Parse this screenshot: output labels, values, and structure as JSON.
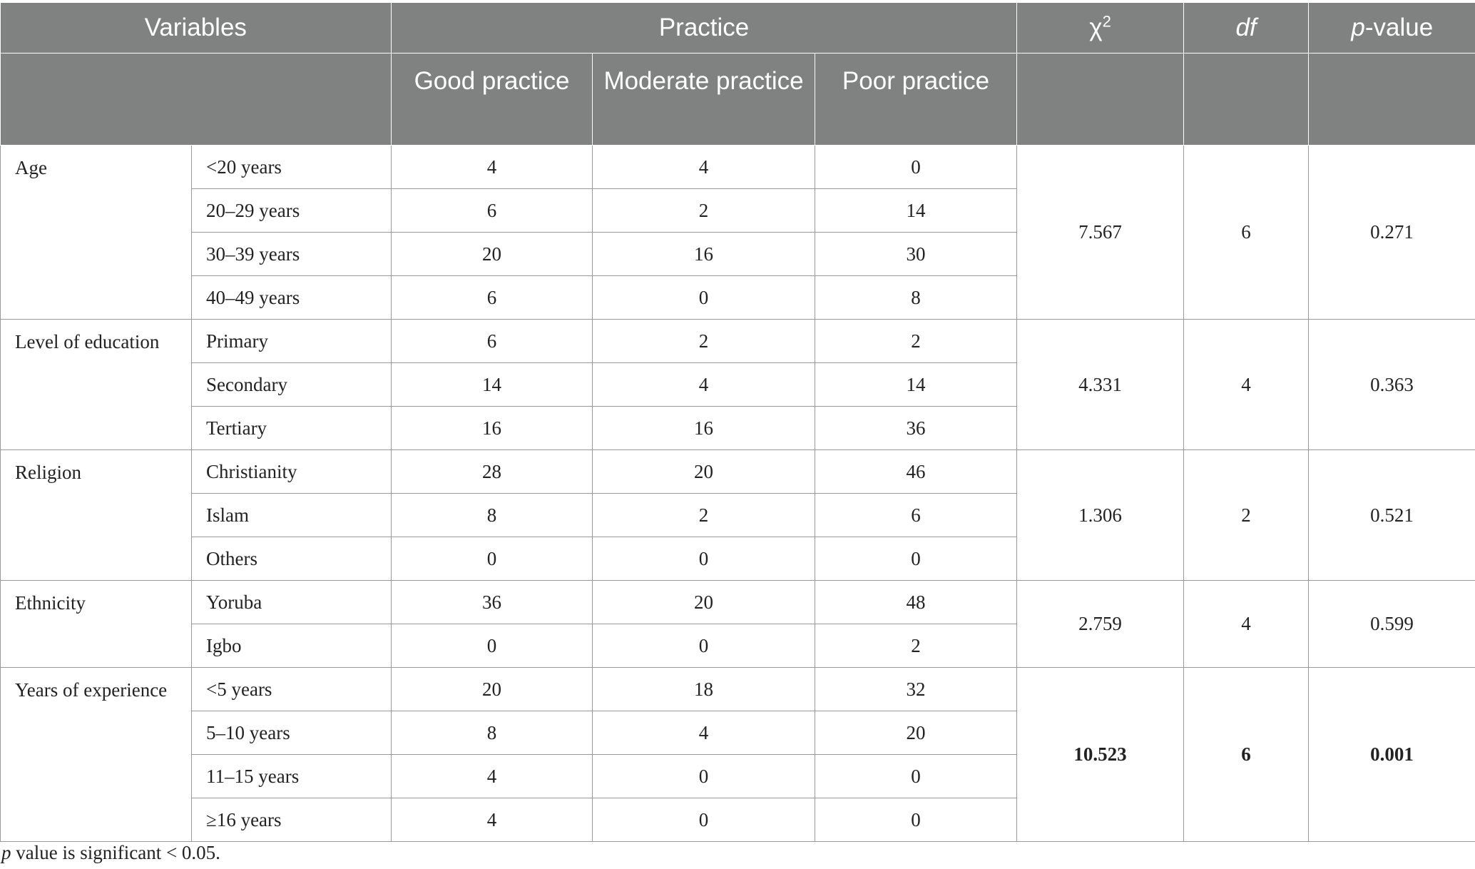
{
  "header": {
    "variables": "Variables",
    "practice": "Practice",
    "chi_symbol": "χ",
    "chi_sup": "2",
    "df": "df",
    "p_italic": "p",
    "p_rest": "-value",
    "sub_good": "Good practice",
    "sub_moderate": "Moderate practice",
    "sub_poor": "Poor practice"
  },
  "groups": [
    {
      "variable": "Age",
      "chi2": "7.567",
      "df": "6",
      "p": "0.271",
      "bold": false,
      "rows": [
        {
          "label": "<20 years",
          "good": "4",
          "moderate": "4",
          "poor": "0"
        },
        {
          "label": "20–29 years",
          "good": "6",
          "moderate": "2",
          "poor": "14"
        },
        {
          "label": "30–39 years",
          "good": "20",
          "moderate": "16",
          "poor": "30"
        },
        {
          "label": "40–49 years",
          "good": "6",
          "moderate": "0",
          "poor": "8"
        }
      ]
    },
    {
      "variable": "Level of education",
      "chi2": "4.331",
      "df": "4",
      "p": "0.363",
      "bold": false,
      "rows": [
        {
          "label": "Primary",
          "good": "6",
          "moderate": "2",
          "poor": "2"
        },
        {
          "label": "Secondary",
          "good": "14",
          "moderate": "4",
          "poor": "14"
        },
        {
          "label": "Tertiary",
          "good": "16",
          "moderate": "16",
          "poor": "36"
        }
      ]
    },
    {
      "variable": "Religion",
      "chi2": "1.306",
      "df": "2",
      "p": "0.521",
      "bold": false,
      "rows": [
        {
          "label": "Christianity",
          "good": "28",
          "moderate": "20",
          "poor": "46"
        },
        {
          "label": "Islam",
          "good": "8",
          "moderate": "2",
          "poor": "6"
        },
        {
          "label": "Others",
          "good": "0",
          "moderate": "0",
          "poor": "0"
        }
      ]
    },
    {
      "variable": "Ethnicity",
      "chi2": "2.759",
      "df": "4",
      "p": "0.599",
      "bold": false,
      "rows": [
        {
          "label": "Yoruba",
          "good": "36",
          "moderate": "20",
          "poor": "48"
        },
        {
          "label": "Igbo",
          "good": "0",
          "moderate": "0",
          "poor": "2"
        }
      ]
    },
    {
      "variable": "Years of experience",
      "chi2": "10.523",
      "df": "6",
      "p": "0.001",
      "bold": true,
      "rows": [
        {
          "label": "<5 years",
          "good": "20",
          "moderate": "18",
          "poor": "32"
        },
        {
          "label": "5–10 years",
          "good": "8",
          "moderate": "4",
          "poor": "20"
        },
        {
          "label": "11–15 years",
          "good": "4",
          "moderate": "0",
          "poor": "0"
        },
        {
          "label": "≥16 years",
          "good": "4",
          "moderate": "0",
          "poor": "0"
        }
      ]
    }
  ],
  "footnote": {
    "p_italic": "p",
    "text": " value is significant < 0.05."
  }
}
